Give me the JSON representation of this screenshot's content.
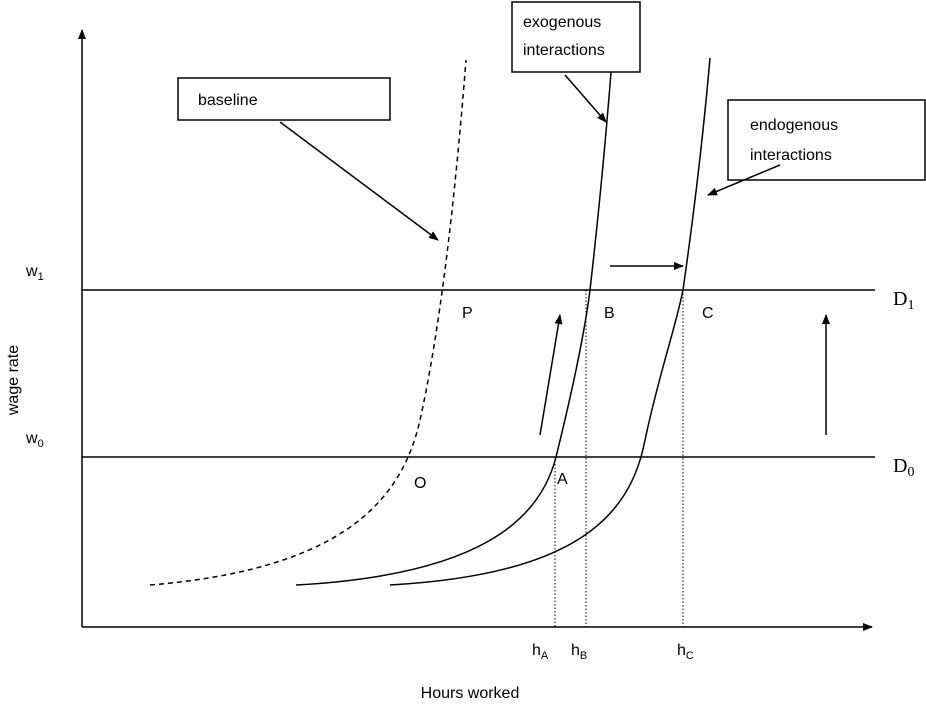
{
  "boxes": {
    "baseline": "baseline",
    "exogenous": [
      "exogenous",
      "interactions"
    ],
    "endogenous": [
      "endogenous",
      "interactions"
    ]
  },
  "axes": {
    "y_label": "wage rate",
    "x_label": "Hours worked",
    "w1": {
      "base": "w",
      "sub": "1"
    },
    "w0": {
      "base": "w",
      "sub": "0"
    },
    "hA": {
      "base": "h",
      "sub": "A"
    },
    "hB": {
      "base": "h",
      "sub": "B"
    },
    "hC": {
      "base": "h",
      "sub": "C"
    }
  },
  "lines": {
    "D1": {
      "base": "D",
      "sub": "1"
    },
    "D0": {
      "base": "D",
      "sub": "0"
    }
  },
  "points": {
    "P": "P",
    "B": "B",
    "C": "C",
    "O": "O",
    "A": "A"
  }
}
